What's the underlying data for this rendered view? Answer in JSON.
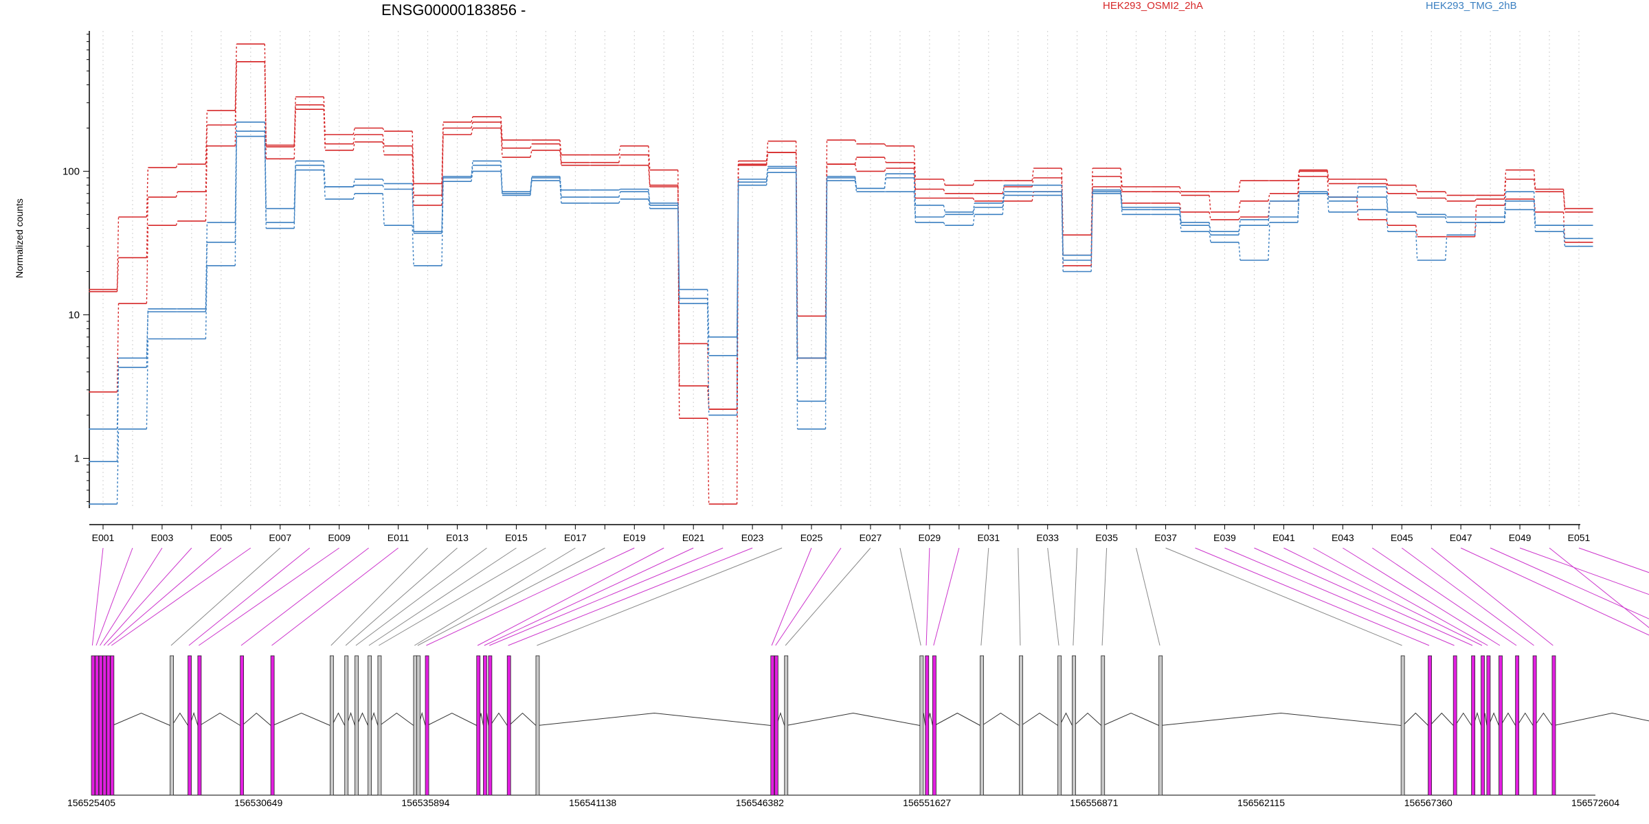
{
  "chart_data": {
    "type": "line",
    "title": "ENSG00000183856 -",
    "ylabel": "Normalized counts",
    "xlabel": "",
    "y_scale": "log",
    "ylim": [
      0.45,
      950
    ],
    "y_ticks": [
      1,
      10,
      100
    ],
    "y_tick_labels": [
      "1",
      "10",
      "100"
    ],
    "grid": "vertical dotted lines at each exon",
    "legend_placement": "top",
    "colors": {
      "OSMI2": "#d62728",
      "TMG": "#3a7fc1",
      "exon_expressed": "#e21fe0",
      "exon_other": "#c8c8c8",
      "intron": "#000000",
      "connector_highlight": "#cc33cc",
      "connector_default": "#888888"
    },
    "series_groups": [
      {
        "name": "HEK293_OSMI2_2hA",
        "color": "#d62728"
      },
      {
        "name": "HEK293_TMG_2hB",
        "color": "#3a7fc1"
      }
    ],
    "x_categories": [
      "E001",
      "E002",
      "E003",
      "E004",
      "E005",
      "E006",
      "E007",
      "E008",
      "E009",
      "E010",
      "E011",
      "E012",
      "E013",
      "E014",
      "E015",
      "E016",
      "E017",
      "E018",
      "E019",
      "E020",
      "E021",
      "E022",
      "E023",
      "E024",
      "E025",
      "E026",
      "E027",
      "E028",
      "E029",
      "E030",
      "E031",
      "E032",
      "E033",
      "E034",
      "E035",
      "E036",
      "E037",
      "E038",
      "E039",
      "E040",
      "E041",
      "E042",
      "E043",
      "E044",
      "E045",
      "E046",
      "E047",
      "E048",
      "E049",
      "E050",
      "E051"
    ],
    "x_tick_labels": [
      "E001",
      "E003",
      "E005",
      "E007",
      "E009",
      "E011",
      "E013",
      "E015",
      "E017",
      "E019",
      "E021",
      "E023",
      "E025",
      "E027",
      "E029",
      "E031",
      "E033",
      "E035",
      "E037",
      "E039",
      "E041",
      "E043",
      "E045",
      "E047",
      "E049",
      "E051"
    ],
    "series": [
      {
        "group": "HEK293_OSMI2_2hA",
        "values": [
          15,
          48,
          106,
          112,
          265,
          770,
          152,
          330,
          180,
          200,
          190,
          82,
          220,
          240,
          165,
          165,
          130,
          130,
          150,
          102,
          6.3,
          2.2,
          118,
          162,
          9.8,
          165,
          155,
          150,
          88,
          80,
          86,
          86,
          105,
          36,
          105,
          78,
          78,
          72,
          72,
          86,
          86,
          102,
          88,
          88,
          80,
          72,
          68,
          68,
          102,
          75,
          55
        ]
      },
      {
        "group": "HEK293_OSMI2_2hA",
        "values": [
          14.5,
          25,
          66,
          72,
          210,
          580,
          148,
          290,
          155,
          180,
          150,
          68,
          200,
          220,
          145,
          155,
          115,
          115,
          130,
          80,
          3.2,
          2.2,
          112,
          135,
          5,
          112,
          125,
          115,
          75,
          70,
          70,
          78,
          90,
          26,
          92,
          72,
          72,
          68,
          52,
          62,
          70,
          100,
          82,
          82,
          70,
          65,
          62,
          64,
          88,
          72,
          52
        ]
      },
      {
        "group": "HEK293_OSMI2_2hA",
        "values": [
          2.9,
          12,
          42,
          45,
          150,
          580,
          122,
          270,
          140,
          160,
          130,
          58,
          180,
          200,
          125,
          140,
          110,
          110,
          110,
          78,
          1.9,
          0.48,
          110,
          135,
          5,
          112,
          100,
          105,
          65,
          65,
          62,
          62,
          72,
          22,
          78,
          60,
          60,
          52,
          46,
          48,
          62,
          92,
          66,
          46,
          42,
          35,
          35,
          58,
          64,
          52,
          32
        ]
      },
      {
        "group": "HEK293_TMG_2hB",
        "values": [
          1.6,
          5,
          11,
          11,
          44,
          220,
          55,
          118,
          78,
          88,
          82,
          38,
          92,
          118,
          72,
          92,
          74,
          74,
          75,
          60,
          15,
          7,
          88,
          108,
          5,
          92,
          76,
          96,
          58,
          52,
          60,
          80,
          80,
          26,
          74,
          56,
          56,
          44,
          38,
          42,
          62,
          72,
          66,
          66,
          52,
          50,
          48,
          48,
          62,
          42,
          42
        ]
      },
      {
        "group": "HEK293_TMG_2hB",
        "values": [
          0.95,
          4.3,
          10.5,
          10.5,
          32,
          190,
          44,
          110,
          78,
          80,
          75,
          37,
          90,
          110,
          70,
          90,
          66,
          66,
          72,
          58,
          13,
          5.2,
          84,
          105,
          2.5,
          90,
          76,
          90,
          48,
          50,
          56,
          72,
          72,
          24,
          72,
          54,
          54,
          42,
          36,
          46,
          48,
          70,
          62,
          78,
          52,
          48,
          44,
          44,
          72,
          42,
          34
        ]
      },
      {
        "group": "HEK293_TMG_2hB",
        "values": [
          0.48,
          1.6,
          6.8,
          6.8,
          22,
          175,
          40,
          102,
          64,
          70,
          42,
          22,
          85,
          100,
          68,
          86,
          60,
          60,
          64,
          55,
          12,
          2,
          80,
          98,
          1.6,
          86,
          72,
          72,
          44,
          42,
          50,
          68,
          68,
          20,
          70,
          50,
          50,
          38,
          32,
          24,
          44,
          70,
          52,
          54,
          38,
          24,
          36,
          44,
          54,
          38,
          30
        ]
      }
    ],
    "gene_model": {
      "genomic_tick_labels": [
        "156525405",
        "156530649",
        "156535894",
        "156541138",
        "156546382",
        "156551627",
        "156556871",
        "156562115",
        "156567360",
        "156572604"
      ],
      "genomic_start": 156525405,
      "genomic_end": 156572604,
      "exon_starts": [
        156525405,
        156525525,
        156525645,
        156525765,
        156525885,
        156526005,
        156527875,
        156528435,
        156528745,
        156530075,
        156531035,
        156532895,
        156533355,
        156533675,
        156534085,
        156534395,
        156535515,
        156535615,
        156535885,
        156537495,
        156537705,
        156537865,
        156538455,
        156539355,
        156546725,
        156546845,
        156547155,
        156551405,
        156551575,
        156551805,
        156553295,
        156554525,
        156555735,
        156556185,
        156557095,
        156558905,
        156566505,
        156567355,
        156568145,
        156568715,
        156569015,
        156569195,
        156569575,
        156570095,
        156570645,
        156571245,
        156574955,
        156576125,
        156578695,
        156574955,
        156580775
      ],
      "exon_ends": [
        156525465,
        156525585,
        156525705,
        156525825,
        156525945,
        156526065,
        156527935,
        156528495,
        156528805,
        156530135,
        156531095,
        156532955,
        156533415,
        156533735,
        156534145,
        156534455,
        156535575,
        156535675,
        156535945,
        156537555,
        156537765,
        156537925,
        156538515,
        156539415,
        156546785,
        156546905,
        156547215,
        156551465,
        156551635,
        156551865,
        156553355,
        156554585,
        156555795,
        156556245,
        156557155,
        156558965,
        156566565,
        156567415,
        156568205,
        156568775,
        156569075,
        156569255,
        156569635,
        156570155,
        156570705,
        156571305,
        156575015,
        156576185,
        156578755,
        156575015,
        156580835
      ],
      "expressed_exons": [
        "E001",
        "E002",
        "E003",
        "E004",
        "E005",
        "E006",
        "E008",
        "E009",
        "E010",
        "E011",
        "E019",
        "E020",
        "E021",
        "E022",
        "E023",
        "E025",
        "E026",
        "E029",
        "E030",
        "E038",
        "E039",
        "E040",
        "E041",
        "E042",
        "E043",
        "E044",
        "E045",
        "E046",
        "E047",
        "E048",
        "E049",
        "E050",
        "E051"
      ]
    }
  }
}
